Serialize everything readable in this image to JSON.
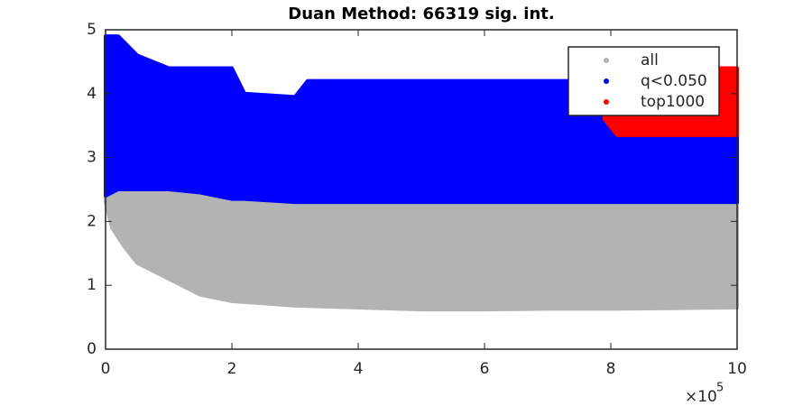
{
  "chart_data": {
    "type": "band",
    "title": "Duan Method: 66319 sig. int.",
    "xlim": [
      0,
      1000000
    ],
    "ylim": [
      0,
      5
    ],
    "xticks": [
      0,
      {
        "value": 200000,
        "label": "2"
      },
      {
        "value": 400000,
        "label": "4"
      },
      {
        "value": 600000,
        "label": "6"
      },
      {
        "value": 800000,
        "label": "8"
      },
      {
        "value": 1000000,
        "label": "10"
      }
    ],
    "yticks": [
      0,
      1,
      2,
      3,
      4,
      5
    ],
    "x_multiplier": {
      "base": "×10",
      "exponent": "5"
    },
    "legend": "top-right",
    "series": [
      {
        "name": "all",
        "color": "#b3b3b3",
        "x": [
          0,
          10000,
          30000,
          50000,
          100000,
          150000,
          200000,
          300000,
          400000,
          500000,
          600000,
          700000,
          800000,
          900000,
          1000000
        ],
        "low": [
          2.3,
          1.9,
          1.6,
          1.35,
          1.1,
          0.85,
          0.75,
          0.68,
          0.65,
          0.62,
          0.62,
          0.63,
          0.63,
          0.64,
          0.65
        ],
        "high": [
          4.3,
          3.9,
          3.6,
          3.4,
          3.2,
          3.0,
          2.8,
          2.7,
          2.6,
          2.5,
          2.45,
          2.4,
          2.35,
          2.3,
          2.3
        ]
      },
      {
        "name": "q<0.050",
        "color": "#0000ff",
        "x": [
          0,
          20000,
          50000,
          100000,
          150000,
          200000,
          220000,
          300000,
          320000,
          400000,
          600000,
          800000,
          1000000
        ],
        "low": [
          2.4,
          2.5,
          2.5,
          2.5,
          2.45,
          2.35,
          2.35,
          2.3,
          2.3,
          2.3,
          2.3,
          2.3,
          2.3
        ],
        "high": [
          4.9,
          4.9,
          4.6,
          4.4,
          4.4,
          4.4,
          4.0,
          3.95,
          4.2,
          4.2,
          4.2,
          4.2,
          4.2
        ]
      },
      {
        "name": "top1000",
        "color": "#ff0000",
        "x": [
          790000,
          810000,
          850000,
          1000000
        ],
        "low": [
          3.6,
          3.35,
          3.35,
          3.35
        ],
        "high": [
          4.1,
          4.3,
          4.4,
          4.4
        ]
      }
    ]
  }
}
